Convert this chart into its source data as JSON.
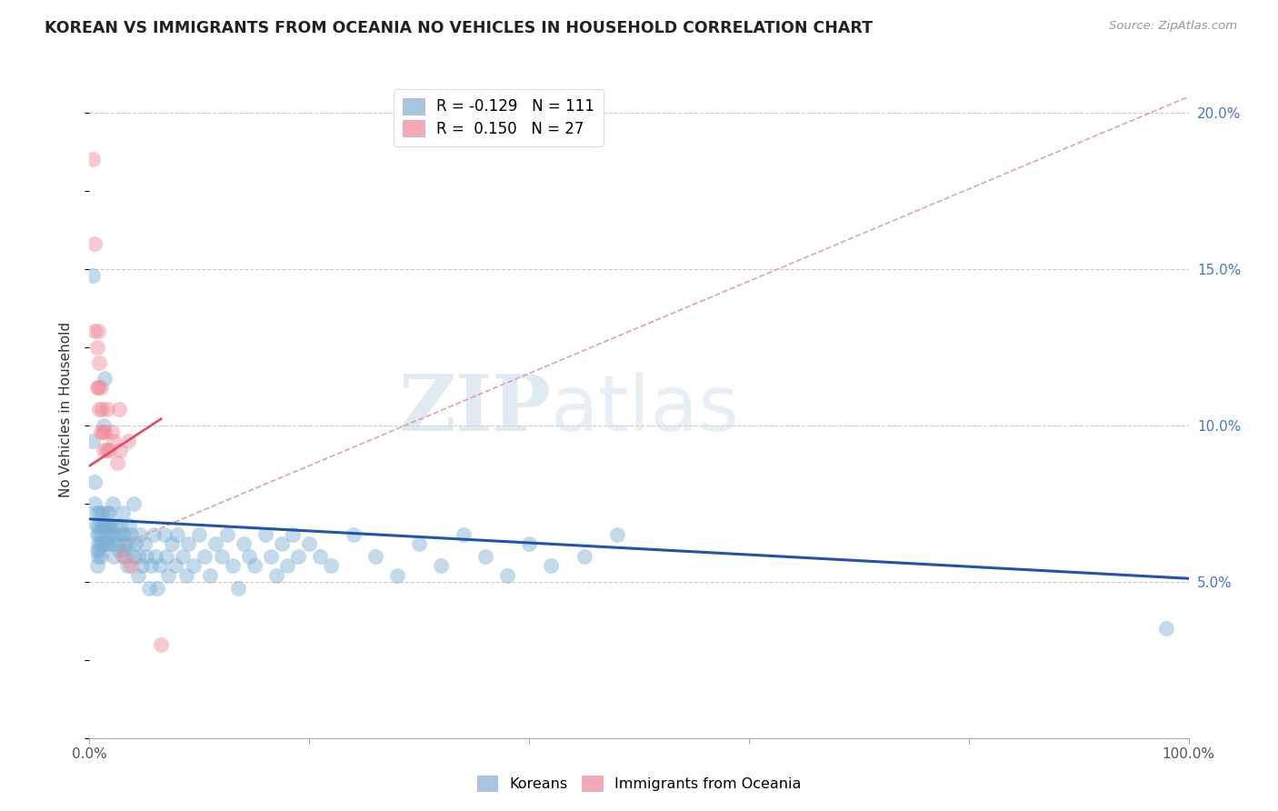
{
  "title": "KOREAN VS IMMIGRANTS FROM OCEANIA NO VEHICLES IN HOUSEHOLD CORRELATION CHART",
  "source": "Source: ZipAtlas.com",
  "ylabel": "No Vehicles in Household",
  "xlim": [
    0.0,
    1.0
  ],
  "ylim": [
    0.0,
    0.21
  ],
  "x_tick_positions": [
    0.0,
    0.2,
    0.4,
    0.6,
    0.8,
    1.0
  ],
  "x_tick_labels": [
    "0.0%",
    "",
    "",
    "",
    "",
    "100.0%"
  ],
  "y_ticks_right": [
    0.05,
    0.1,
    0.15,
    0.2
  ],
  "y_tick_labels_right": [
    "5.0%",
    "10.0%",
    "15.0%",
    "20.0%"
  ],
  "blue_color": "#7bafd4",
  "pink_color": "#f08898",
  "blue_line_color": "#2255aa",
  "pink_line_color": "#d9536a",
  "pink_dashed_color": "#e0a0b0",
  "watermark": "ZIPatlas",
  "legend_label_blue": "R = -0.129   N = 111",
  "legend_label_pink": "R =  0.150   N = 27",
  "legend_color_blue": "#a8c4e0",
  "legend_color_pink": "#f4a8b8",
  "bottom_legend_blue": "Koreans",
  "bottom_legend_pink": "Immigrants from Oceania",
  "korean_points": [
    [
      0.003,
      0.148
    ],
    [
      0.003,
      0.095
    ],
    [
      0.005,
      0.082
    ],
    [
      0.005,
      0.075
    ],
    [
      0.006,
      0.072
    ],
    [
      0.006,
      0.068
    ],
    [
      0.007,
      0.065
    ],
    [
      0.007,
      0.06
    ],
    [
      0.007,
      0.055
    ],
    [
      0.008,
      0.068
    ],
    [
      0.008,
      0.062
    ],
    [
      0.008,
      0.058
    ],
    [
      0.009,
      0.072
    ],
    [
      0.009,
      0.065
    ],
    [
      0.009,
      0.06
    ],
    [
      0.01,
      0.068
    ],
    [
      0.01,
      0.062
    ],
    [
      0.01,
      0.058
    ],
    [
      0.011,
      0.072
    ],
    [
      0.011,
      0.065
    ],
    [
      0.012,
      0.068
    ],
    [
      0.012,
      0.062
    ],
    [
      0.013,
      0.1
    ],
    [
      0.013,
      0.068
    ],
    [
      0.014,
      0.115
    ],
    [
      0.015,
      0.068
    ],
    [
      0.015,
      0.062
    ],
    [
      0.016,
      0.072
    ],
    [
      0.016,
      0.065
    ],
    [
      0.017,
      0.068
    ],
    [
      0.017,
      0.062
    ],
    [
      0.018,
      0.072
    ],
    [
      0.018,
      0.065
    ],
    [
      0.019,
      0.068
    ],
    [
      0.02,
      0.062
    ],
    [
      0.021,
      0.075
    ],
    [
      0.022,
      0.065
    ],
    [
      0.022,
      0.058
    ],
    [
      0.024,
      0.068
    ],
    [
      0.025,
      0.062
    ],
    [
      0.026,
      0.065
    ],
    [
      0.027,
      0.06
    ],
    [
      0.028,
      0.068
    ],
    [
      0.03,
      0.072
    ],
    [
      0.03,
      0.065
    ],
    [
      0.031,
      0.06
    ],
    [
      0.032,
      0.065
    ],
    [
      0.032,
      0.058
    ],
    [
      0.033,
      0.062
    ],
    [
      0.034,
      0.055
    ],
    [
      0.036,
      0.068
    ],
    [
      0.036,
      0.062
    ],
    [
      0.038,
      0.065
    ],
    [
      0.04,
      0.058
    ],
    [
      0.04,
      0.075
    ],
    [
      0.042,
      0.062
    ],
    [
      0.044,
      0.058
    ],
    [
      0.044,
      0.052
    ],
    [
      0.046,
      0.065
    ],
    [
      0.048,
      0.055
    ],
    [
      0.05,
      0.062
    ],
    [
      0.052,
      0.058
    ],
    [
      0.054,
      0.048
    ],
    [
      0.056,
      0.055
    ],
    [
      0.058,
      0.065
    ],
    [
      0.06,
      0.058
    ],
    [
      0.062,
      0.048
    ],
    [
      0.064,
      0.055
    ],
    [
      0.068,
      0.065
    ],
    [
      0.07,
      0.058
    ],
    [
      0.072,
      0.052
    ],
    [
      0.075,
      0.062
    ],
    [
      0.078,
      0.055
    ],
    [
      0.08,
      0.065
    ],
    [
      0.085,
      0.058
    ],
    [
      0.088,
      0.052
    ],
    [
      0.09,
      0.062
    ],
    [
      0.095,
      0.055
    ],
    [
      0.1,
      0.065
    ],
    [
      0.105,
      0.058
    ],
    [
      0.11,
      0.052
    ],
    [
      0.115,
      0.062
    ],
    [
      0.12,
      0.058
    ],
    [
      0.125,
      0.065
    ],
    [
      0.13,
      0.055
    ],
    [
      0.135,
      0.048
    ],
    [
      0.14,
      0.062
    ],
    [
      0.145,
      0.058
    ],
    [
      0.15,
      0.055
    ],
    [
      0.16,
      0.065
    ],
    [
      0.165,
      0.058
    ],
    [
      0.17,
      0.052
    ],
    [
      0.175,
      0.062
    ],
    [
      0.18,
      0.055
    ],
    [
      0.185,
      0.065
    ],
    [
      0.19,
      0.058
    ],
    [
      0.2,
      0.062
    ],
    [
      0.21,
      0.058
    ],
    [
      0.22,
      0.055
    ],
    [
      0.24,
      0.065
    ],
    [
      0.26,
      0.058
    ],
    [
      0.28,
      0.052
    ],
    [
      0.3,
      0.062
    ],
    [
      0.32,
      0.055
    ],
    [
      0.34,
      0.065
    ],
    [
      0.36,
      0.058
    ],
    [
      0.38,
      0.052
    ],
    [
      0.4,
      0.062
    ],
    [
      0.42,
      0.055
    ],
    [
      0.45,
      0.058
    ],
    [
      0.48,
      0.065
    ],
    [
      0.98,
      0.035
    ]
  ],
  "oceania_points": [
    [
      0.003,
      0.185
    ],
    [
      0.005,
      0.158
    ],
    [
      0.005,
      0.13
    ],
    [
      0.007,
      0.125
    ],
    [
      0.007,
      0.112
    ],
    [
      0.008,
      0.13
    ],
    [
      0.008,
      0.112
    ],
    [
      0.009,
      0.12
    ],
    [
      0.009,
      0.105
    ],
    [
      0.01,
      0.112
    ],
    [
      0.01,
      0.098
    ],
    [
      0.011,
      0.105
    ],
    [
      0.012,
      0.098
    ],
    [
      0.013,
      0.092
    ],
    [
      0.014,
      0.098
    ],
    [
      0.015,
      0.092
    ],
    [
      0.016,
      0.105
    ],
    [
      0.018,
      0.092
    ],
    [
      0.02,
      0.098
    ],
    [
      0.022,
      0.095
    ],
    [
      0.025,
      0.088
    ],
    [
      0.027,
      0.105
    ],
    [
      0.028,
      0.092
    ],
    [
      0.03,
      0.058
    ],
    [
      0.035,
      0.095
    ],
    [
      0.038,
      0.055
    ],
    [
      0.065,
      0.03
    ]
  ],
  "blue_trend": [
    0.0,
    1.0,
    0.07,
    0.051
  ],
  "pink_trend": [
    0.0,
    0.065,
    0.087,
    0.102
  ],
  "pink_dashed": [
    0.03,
    1.0,
    0.062,
    0.205
  ]
}
